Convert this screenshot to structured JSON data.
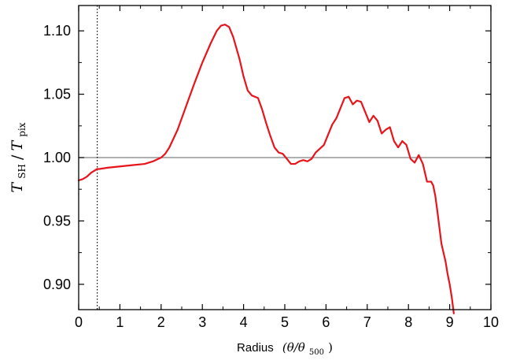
{
  "chart_data": {
    "type": "line",
    "xlabel_text": "Radius",
    "xlabel_math": "(θ/θ",
    "xlabel_sub": "500",
    "xlabel_close": ")",
    "ylabel_T1": "T",
    "ylabel_sub1": "SH",
    "ylabel_slash": "/",
    "ylabel_T2": "T",
    "ylabel_sub2": "pix",
    "xlim": [
      0,
      10
    ],
    "ylim": [
      0.88,
      1.12
    ],
    "x_ticks": [
      0,
      1,
      2,
      3,
      4,
      5,
      6,
      7,
      8,
      9,
      10
    ],
    "x_tick_labels": [
      "0",
      "1",
      "2",
      "3",
      "4",
      "5",
      "6",
      "7",
      "8",
      "9",
      "10"
    ],
    "y_ticks": [
      0.9,
      0.95,
      1.0,
      1.05,
      1.1
    ],
    "y_tick_labels": [
      "0.90",
      "0.95",
      "1.00",
      "1.05",
      "1.10"
    ],
    "reference_line_y": 1.0,
    "vertical_marker_x": 0.45,
    "colors": {
      "series": "#e8141b",
      "reference": "#808080",
      "axis": "#000000",
      "marker": "#000000"
    },
    "series": [
      {
        "x": [
          0,
          0.1,
          0.2,
          0.3,
          0.4,
          0.45,
          0.5,
          0.7,
          1.0,
          1.3,
          1.6,
          1.8,
          2.0,
          2.1,
          2.2,
          2.4,
          2.6,
          2.8,
          3.0,
          3.2,
          3.35,
          3.45,
          3.55,
          3.65,
          3.75,
          3.9,
          4.0,
          4.1,
          4.2,
          4.35,
          4.45,
          4.55,
          4.65,
          4.75,
          4.85,
          4.95,
          5.05,
          5.15,
          5.25,
          5.35,
          5.45,
          5.55,
          5.65,
          5.75,
          5.85,
          5.95,
          6.05,
          6.15,
          6.25,
          6.35,
          6.45,
          6.55,
          6.65,
          6.75,
          6.85,
          6.95,
          7.05,
          7.15,
          7.25,
          7.35,
          7.45,
          7.55,
          7.65,
          7.75,
          7.85,
          7.95,
          8.05,
          8.15,
          8.25,
          8.35,
          8.45,
          8.55,
          8.6,
          8.65,
          8.7,
          8.75,
          8.8,
          8.85,
          8.9,
          8.95,
          9.0,
          9.05,
          9.1
        ],
        "y": [
          0.982,
          0.983,
          0.985,
          0.988,
          0.99,
          0.991,
          0.991,
          0.992,
          0.993,
          0.994,
          0.995,
          0.997,
          1.0,
          1.003,
          1.008,
          1.022,
          1.04,
          1.058,
          1.075,
          1.09,
          1.1,
          1.104,
          1.105,
          1.103,
          1.095,
          1.078,
          1.064,
          1.053,
          1.049,
          1.047,
          1.038,
          1.027,
          1.017,
          1.008,
          1.004,
          1.003,
          0.999,
          0.995,
          0.995,
          0.997,
          0.998,
          0.997,
          0.999,
          1.004,
          1.007,
          1.01,
          1.018,
          1.026,
          1.031,
          1.039,
          1.047,
          1.048,
          1.042,
          1.045,
          1.044,
          1.036,
          1.028,
          1.033,
          1.029,
          1.019,
          1.022,
          1.024,
          1.013,
          1.008,
          1.013,
          1.01,
          0.999,
          0.996,
          1.002,
          0.995,
          0.981,
          0.981,
          0.978,
          0.97,
          0.958,
          0.945,
          0.932,
          0.925,
          0.918,
          0.908,
          0.9,
          0.89,
          0.877
        ]
      }
    ]
  }
}
